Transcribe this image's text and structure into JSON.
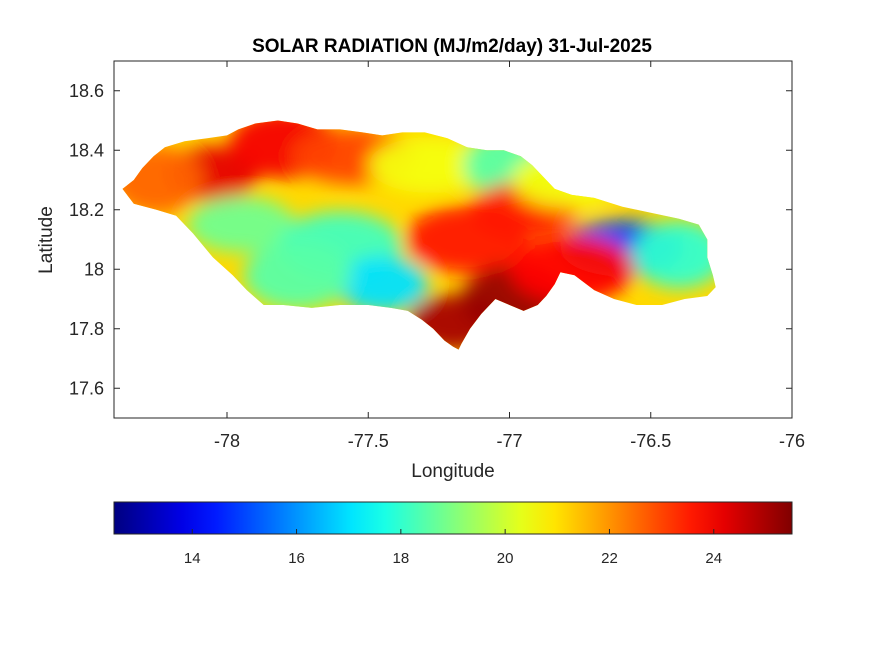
{
  "chart_data": {
    "type": "heatmap",
    "title": "SOLAR RADIATION (MJ/m2/day) 31-Jul-2025",
    "xlabel": "Longitude",
    "ylabel": "Latitude",
    "xlim": [
      -78.4,
      -76.0
    ],
    "ylim": [
      17.5,
      18.7
    ],
    "x_ticks": [
      -78,
      -77.5,
      -77,
      -76.5,
      -76
    ],
    "x_tick_labels": [
      "-78",
      "-77.5",
      "-77",
      "-76.5",
      "-76"
    ],
    "y_ticks": [
      17.6,
      17.8,
      18.0,
      18.2,
      18.4,
      18.6
    ],
    "y_tick_labels": [
      "17.6",
      "17.8",
      "18",
      "18.2",
      "18.4",
      "18.6"
    ],
    "colormap": "jet",
    "colorbar": {
      "location": "bottom",
      "limits": [
        12.5,
        25.5
      ],
      "ticks": [
        14,
        16,
        18,
        20,
        22,
        24
      ],
      "tick_labels": [
        "14",
        "16",
        "18",
        "20",
        "22",
        "24"
      ]
    },
    "regions": [
      {
        "name": "",
        "lon": -78.05,
        "lat": 18.32,
        "value": 24.2
      },
      {
        "name": "",
        "lon": -77.8,
        "lat": 18.42,
        "value": 24.0
      },
      {
        "name": "",
        "lon": -77.55,
        "lat": 18.38,
        "value": 23.0
      },
      {
        "name": "",
        "lon": -78.25,
        "lat": 18.3,
        "value": 22.6
      },
      {
        "name": "",
        "lon": -77.95,
        "lat": 18.15,
        "value": 18.8
      },
      {
        "name": "",
        "lon": -77.6,
        "lat": 18.08,
        "value": 18.2
      },
      {
        "name": "",
        "lon": -77.45,
        "lat": 17.95,
        "value": 17.0
      },
      {
        "name": "",
        "lon": -77.75,
        "lat": 17.98,
        "value": 18.5
      },
      {
        "name": "",
        "lon": -77.28,
        "lat": 18.35,
        "value": 20.5
      },
      {
        "name": "",
        "lon": -77.0,
        "lat": 18.35,
        "value": 18.5
      },
      {
        "name": "",
        "lon": -76.95,
        "lat": 18.2,
        "value": 23.5
      },
      {
        "name": "",
        "lon": -77.15,
        "lat": 18.1,
        "value": 23.6
      },
      {
        "name": "",
        "lon": -77.2,
        "lat": 17.82,
        "value": 25.0
      },
      {
        "name": "",
        "lon": -76.98,
        "lat": 17.9,
        "value": 25.2
      },
      {
        "name": "",
        "lon": -76.6,
        "lat": 18.07,
        "value": 15.0
      },
      {
        "name": "",
        "lon": -76.4,
        "lat": 18.05,
        "value": 18.0
      },
      {
        "name": "",
        "lon": -76.8,
        "lat": 18.3,
        "value": 20.5
      },
      {
        "name": "",
        "lon": -76.78,
        "lat": 18.0,
        "value": 23.8
      }
    ],
    "grid": false
  }
}
